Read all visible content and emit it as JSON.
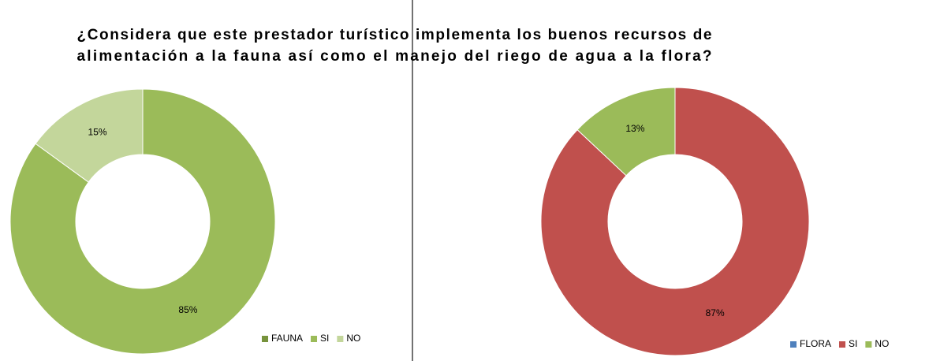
{
  "title": [
    "¿Considera que este prestador turístico implementa  los buenos recursos de",
    "alimentación  a la fauna así como el manejo del riego de agua a la flora?"
  ],
  "chart_data": [
    {
      "type": "pie",
      "donut": true,
      "series_name": "FAUNA",
      "series_color": "#77933c",
      "categories": [
        "SI",
        "NO"
      ],
      "values": [
        85,
        15
      ],
      "value_labels": [
        "85%",
        "15%"
      ],
      "colors": [
        "#9bbb59",
        "#c3d69b"
      ]
    },
    {
      "type": "pie",
      "donut": true,
      "series_name": "FLORA",
      "series_color": "#4f81bd",
      "categories": [
        "SI",
        "NO"
      ],
      "values": [
        87,
        13
      ],
      "value_labels": [
        "87%",
        "13%"
      ],
      "colors": [
        "#c0504d",
        "#9bbb59"
      ]
    }
  ]
}
